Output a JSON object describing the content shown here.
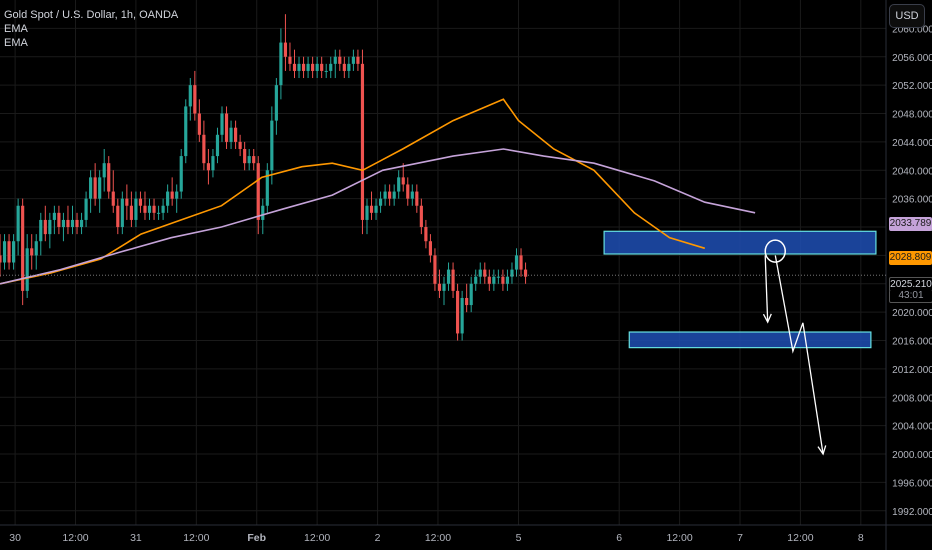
{
  "header": {
    "symbol_line": "Gold Spot / U.S. Dollar, 1h, OANDA",
    "indicator_1": "EMA",
    "indicator_2": "EMA"
  },
  "currency_button": "USD",
  "price_tags": {
    "ema_slow": "2033.789",
    "ema_fast": "2028.809",
    "last_price": "2025.210",
    "countdown": "43:01"
  },
  "colors": {
    "background": "#000000",
    "up_candle": "#26a69a",
    "down_candle": "#ef5350",
    "ema_fast": "#ff9800",
    "ema_slow": "#c5a3d9",
    "zone_fill": "#1f4fb4",
    "zone_border": "#66e0e0",
    "annotation": "#ffffff"
  },
  "chart_data": {
    "type": "candlestick",
    "title": "Gold Spot / U.S. Dollar, 1h, OANDA",
    "ylim": [
      1990,
      2064
    ],
    "y_ticks": [
      1992,
      1996,
      2000,
      2004,
      2008,
      2012,
      2016,
      2020,
      2024,
      2028,
      2032,
      2036,
      2040,
      2044,
      2048,
      2052,
      2056,
      2060
    ],
    "y_tick_labels": [
      "1992.000",
      "1996.000",
      "2000.000",
      "2004.000",
      "2008.000",
      "2012.000",
      "2016.000",
      "2020.000",
      "2024.000",
      "2028.000",
      "2032.000",
      "2036.000",
      "2040.000",
      "2044.000",
      "2048.000",
      "2052.000",
      "2056.000",
      "2060.000"
    ],
    "x_ticks": [
      {
        "label": "30",
        "t": 3
      },
      {
        "label": "12:00",
        "t": 15
      },
      {
        "label": "31",
        "t": 27
      },
      {
        "label": "12:00",
        "t": 39
      },
      {
        "label": "Feb",
        "t": 51
      },
      {
        "label": "12:00",
        "t": 63
      },
      {
        "label": "2",
        "t": 75
      },
      {
        "label": "12:00",
        "t": 87
      },
      {
        "label": "5",
        "t": 103
      },
      {
        "label": "6",
        "t": 123
      },
      {
        "label": "12:00",
        "t": 135
      },
      {
        "label": "7",
        "t": 147
      },
      {
        "label": "12:00",
        "t": 159
      },
      {
        "label": "8",
        "t": 171
      }
    ],
    "x_range": [
      0,
      176
    ],
    "ohlc": [
      [
        2028,
        2031,
        2025,
        2027
      ],
      [
        2027,
        2031,
        2026,
        2030
      ],
      [
        2030,
        2031,
        2026,
        2027
      ],
      [
        2027,
        2031,
        2026,
        2030
      ],
      [
        2030,
        2036,
        2028,
        2035
      ],
      [
        2035,
        2036,
        2021,
        2023
      ],
      [
        2023,
        2031,
        2022,
        2029
      ],
      [
        2029,
        2031,
        2026,
        2028
      ],
      [
        2028,
        2031,
        2026,
        2030
      ],
      [
        2030,
        2034,
        2028,
        2033
      ],
      [
        2033,
        2035,
        2030,
        2031
      ],
      [
        2031,
        2034,
        2029,
        2033
      ],
      [
        2033,
        2035,
        2031,
        2034
      ],
      [
        2034,
        2035,
        2031,
        2032
      ],
      [
        2032,
        2034,
        2030,
        2033
      ],
      [
        2033,
        2035,
        2031,
        2032
      ],
      [
        2032,
        2035,
        2031,
        2033
      ],
      [
        2033,
        2034,
        2031,
        2032
      ],
      [
        2032,
        2034,
        2031,
        2033
      ],
      [
        2033,
        2037,
        2032,
        2036
      ],
      [
        2036,
        2040,
        2034,
        2039
      ],
      [
        2039,
        2041,
        2035,
        2036
      ],
      [
        2036,
        2040,
        2034,
        2039
      ],
      [
        2039,
        2043,
        2037,
        2041
      ],
      [
        2041,
        2042,
        2036,
        2037
      ],
      [
        2037,
        2040,
        2034,
        2035
      ],
      [
        2035,
        2036,
        2031,
        2032
      ],
      [
        2032,
        2037,
        2031,
        2036
      ],
      [
        2036,
        2038,
        2033,
        2035
      ],
      [
        2035,
        2037,
        2032,
        2033
      ],
      [
        2033,
        2037,
        2032,
        2036
      ],
      [
        2036,
        2037,
        2034,
        2035
      ],
      [
        2035,
        2037,
        2033,
        2034
      ],
      [
        2034,
        2036,
        2033,
        2035
      ],
      [
        2035,
        2036,
        2033,
        2034
      ],
      [
        2034,
        2035,
        2033,
        2034
      ],
      [
        2034,
        2036,
        2033,
        2035
      ],
      [
        2035,
        2038,
        2034,
        2037
      ],
      [
        2037,
        2039,
        2035,
        2036
      ],
      [
        2036,
        2038,
        2034,
        2037
      ],
      [
        2037,
        2043,
        2036,
        2042
      ],
      [
        2042,
        2050,
        2041,
        2049
      ],
      [
        2049,
        2053,
        2047,
        2052
      ],
      [
        2052,
        2054,
        2047,
        2048
      ],
      [
        2048,
        2050,
        2044,
        2045
      ],
      [
        2045,
        2047,
        2040,
        2041
      ],
      [
        2041,
        2043,
        2038,
        2040
      ],
      [
        2040,
        2043,
        2039,
        2042
      ],
      [
        2042,
        2046,
        2041,
        2045
      ],
      [
        2045,
        2049,
        2044,
        2048
      ],
      [
        2048,
        2049,
        2043,
        2044
      ],
      [
        2044,
        2047,
        2043,
        2046
      ],
      [
        2046,
        2047,
        2043,
        2044
      ],
      [
        2044,
        2045,
        2042,
        2043
      ],
      [
        2043,
        2044,
        2040,
        2041
      ],
      [
        2041,
        2043,
        2040,
        2042
      ],
      [
        2042,
        2043,
        2040,
        2041
      ],
      [
        2041,
        2042,
        2031,
        2033
      ],
      [
        2033,
        2036,
        2031,
        2035
      ],
      [
        2035,
        2041,
        2034,
        2040
      ],
      [
        2040,
        2049,
        2038,
        2047
      ],
      [
        2047,
        2053,
        2045,
        2052
      ],
      [
        2052,
        2060,
        2050,
        2058
      ],
      [
        2058,
        2062,
        2054,
        2056
      ],
      [
        2056,
        2058,
        2054,
        2055
      ],
      [
        2055,
        2057,
        2053,
        2054
      ],
      [
        2054,
        2056,
        2053,
        2055
      ],
      [
        2055,
        2056,
        2053,
        2054
      ],
      [
        2054,
        2056,
        2053,
        2055
      ],
      [
        2055,
        2056,
        2053,
        2054
      ],
      [
        2054,
        2056,
        2053,
        2055
      ],
      [
        2055,
        2056,
        2053,
        2054
      ],
      [
        2054,
        2055,
        2053,
        2054
      ],
      [
        2054,
        2056,
        2053,
        2055
      ],
      [
        2055,
        2057,
        2053,
        2056
      ],
      [
        2056,
        2057,
        2054,
        2055
      ],
      [
        2055,
        2056,
        2053,
        2054
      ],
      [
        2054,
        2056,
        2053,
        2055
      ],
      [
        2055,
        2057,
        2054,
        2056
      ],
      [
        2056,
        2057,
        2054,
        2055
      ],
      [
        2055,
        2057,
        2031,
        2033
      ],
      [
        2033,
        2036,
        2031,
        2035
      ],
      [
        2035,
        2037,
        2033,
        2034
      ],
      [
        2034,
        2036,
        2033,
        2035
      ],
      [
        2035,
        2037,
        2034,
        2036
      ],
      [
        2036,
        2038,
        2035,
        2037
      ],
      [
        2037,
        2038,
        2035,
        2036
      ],
      [
        2036,
        2038,
        2035,
        2037
      ],
      [
        2037,
        2040,
        2036,
        2039
      ],
      [
        2039,
        2041,
        2037,
        2038
      ],
      [
        2038,
        2039,
        2035,
        2036
      ],
      [
        2036,
        2038,
        2035,
        2037
      ],
      [
        2037,
        2038,
        2034,
        2035
      ],
      [
        2035,
        2036,
        2031,
        2032
      ],
      [
        2032,
        2033,
        2029,
        2030
      ],
      [
        2030,
        2031,
        2027,
        2028
      ],
      [
        2028,
        2029,
        2023,
        2024
      ],
      [
        2024,
        2026,
        2022,
        2023
      ],
      [
        2023,
        2025,
        2021,
        2024
      ],
      [
        2024,
        2027,
        2023,
        2026
      ],
      [
        2026,
        2027,
        2022,
        2023
      ],
      [
        2023,
        2024,
        2016,
        2017
      ],
      [
        2017,
        2023,
        2016,
        2022
      ],
      [
        2022,
        2024,
        2020,
        2021
      ],
      [
        2021,
        2025,
        2020,
        2024
      ],
      [
        2024,
        2026,
        2023,
        2025
      ],
      [
        2025,
        2027,
        2024,
        2026
      ],
      [
        2026,
        2027,
        2024,
        2025
      ],
      [
        2025,
        2026,
        2023,
        2024
      ],
      [
        2024,
        2026,
        2023,
        2025
      ],
      [
        2025,
        2026,
        2024,
        2025
      ],
      [
        2025,
        2026,
        2023,
        2024
      ],
      [
        2024,
        2026,
        2023,
        2025
      ],
      [
        2025,
        2027,
        2024,
        2026
      ],
      [
        2026,
        2029,
        2025,
        2028
      ],
      [
        2028,
        2029,
        2025,
        2026
      ],
      [
        2026,
        2027,
        2024,
        2025
      ]
    ],
    "ohlc_start_t": 0,
    "ohlc_step": 0.9,
    "series": [
      {
        "type": "line",
        "color": "#ff9800",
        "points": [
          [
            0,
            2024
          ],
          [
            10,
            2025.5
          ],
          [
            20,
            2027.5
          ],
          [
            28,
            2031
          ],
          [
            36,
            2033
          ],
          [
            44,
            2035
          ],
          [
            52,
            2039
          ],
          [
            60,
            2040.5
          ],
          [
            66,
            2041
          ],
          [
            72,
            2040
          ],
          [
            80,
            2043
          ],
          [
            90,
            2047
          ],
          [
            100,
            2050
          ],
          [
            103,
            2047
          ],
          [
            110,
            2043
          ],
          [
            118,
            2040
          ],
          [
            126,
            2034
          ],
          [
            133,
            2030.5
          ],
          [
            140,
            2029
          ]
        ]
      },
      {
        "type": "line",
        "color": "#c5a3d9",
        "points": [
          [
            0,
            2024
          ],
          [
            12,
            2026
          ],
          [
            24,
            2028.5
          ],
          [
            34,
            2030.5
          ],
          [
            44,
            2032
          ],
          [
            56,
            2034.5
          ],
          [
            66,
            2036.5
          ],
          [
            76,
            2040
          ],
          [
            90,
            2042
          ],
          [
            100,
            2043
          ],
          [
            108,
            2042
          ],
          [
            118,
            2041
          ],
          [
            130,
            2038.5
          ],
          [
            140,
            2035.5
          ],
          [
            150,
            2034
          ]
        ]
      }
    ],
    "zones": [
      {
        "t0": 120,
        "t1": 174,
        "y0": 2028.2,
        "y1": 2031.4
      },
      {
        "t0": 125,
        "t1": 173,
        "y0": 2015,
        "y1": 2017.2
      }
    ],
    "annotations": {
      "circle": {
        "t": 154,
        "y": 2028.6
      },
      "arrow_short": [
        [
          152,
          2028
        ],
        [
          152.5,
          2018.6
        ]
      ],
      "zigzag": [
        [
          154,
          2028
        ],
        [
          157.5,
          2014.5
        ],
        [
          159.5,
          2018.5
        ],
        [
          163.5,
          2000
        ]
      ]
    },
    "reference_line": 2025.21
  }
}
